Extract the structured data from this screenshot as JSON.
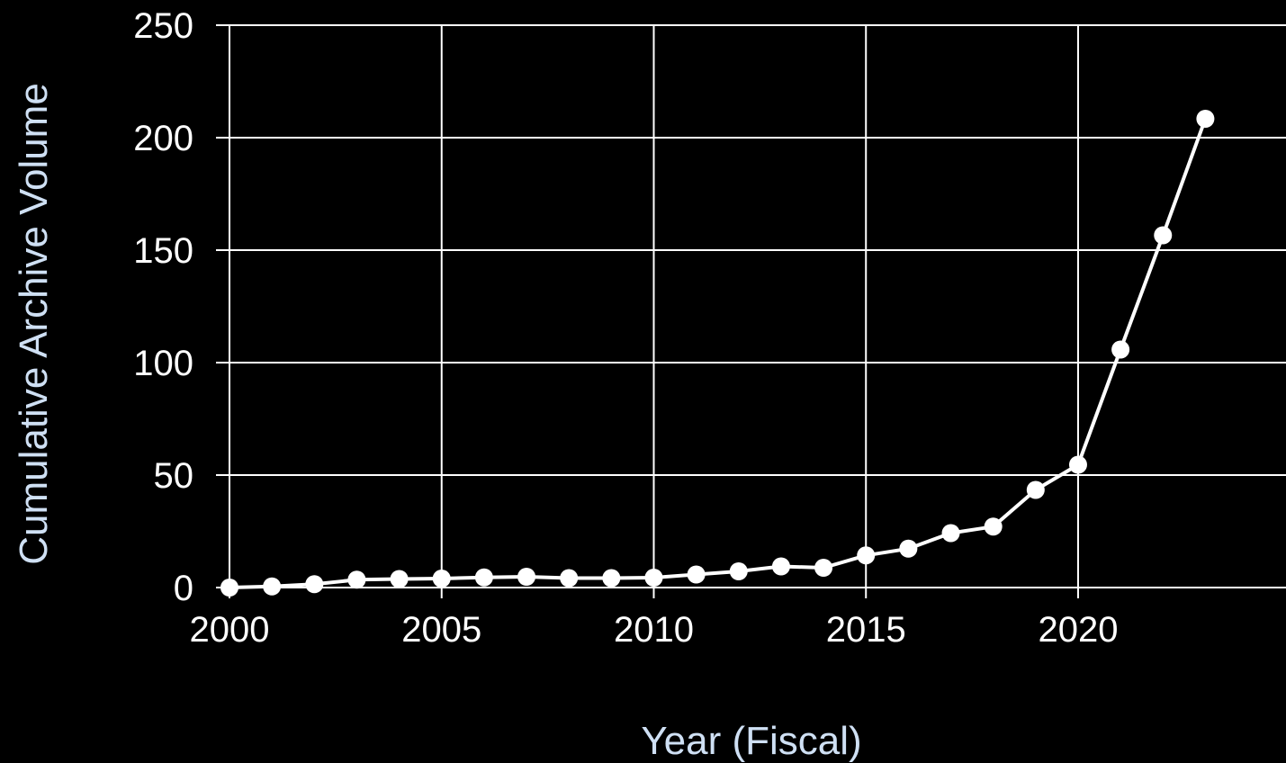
{
  "chart_data": {
    "type": "line",
    "title": "",
    "xlabel": "Year (Fiscal)",
    "ylabel": "Cumulative Archive Volume",
    "xlim": [
      2000,
      2024.9
    ],
    "ylim": [
      0,
      250
    ],
    "x_ticks": [
      2000,
      2005,
      2010,
      2015,
      2020
    ],
    "y_ticks": [
      0,
      50,
      100,
      150,
      200,
      250
    ],
    "grid": true,
    "series": [
      {
        "x": [
          2000,
          2001,
          2002,
          2003,
          2004,
          2005,
          2006,
          2007,
          2008,
          2009,
          2010,
          2011,
          2012,
          2013,
          2014,
          2015,
          2016,
          2017,
          2018,
          2019,
          2020,
          2021,
          2022,
          2023
        ],
        "y": [
          0,
          0.5,
          1.5,
          3.5,
          3.8,
          4,
          4.5,
          4.8,
          4.2,
          4.2,
          4.4,
          5.8,
          7.2,
          9.4,
          8.8,
          14.3,
          17.3,
          24.2,
          27.1,
          43.4,
          54.6,
          105.8,
          156.6,
          208.4
        ]
      }
    ],
    "colors": {
      "background": "#000000",
      "line": "#ffffff",
      "grid": "#ffffff",
      "tick_text": "#ffffff",
      "axis_title": "#cfe0f4"
    }
  }
}
